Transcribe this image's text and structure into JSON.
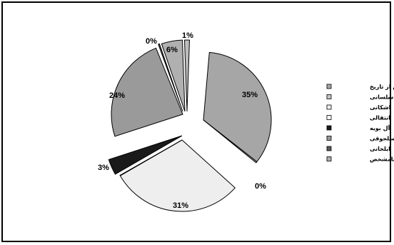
{
  "chart_data": {
    "type": "pie",
    "title": "",
    "legend_position": "right",
    "slices": [
      {
        "label": "پیش از تاریخ",
        "value": 35,
        "value_label": "35%",
        "color": "#a6a6a6"
      },
      {
        "label": "سلسانی",
        "value": 0,
        "value_label": "0%",
        "color": "#c4c4c4"
      },
      {
        "label": "اشکانی",
        "value": 31,
        "value_label": "31%",
        "color": "#eeeeee"
      },
      {
        "label": "انتقالی",
        "value": 0,
        "value_label": "",
        "color": "#ffffff"
      },
      {
        "label": "آل بویه",
        "value": 3,
        "value_label": "3%",
        "color": "#1a1a1a"
      },
      {
        "label": "سلجوقی",
        "value": 24,
        "value_label": "24%",
        "color": "#9a9a9a"
      },
      {
        "label": "ایلخانی",
        "value": 0,
        "value_label": "0%",
        "color": "#5a5a5a"
      },
      {
        "label": "نامشخص",
        "value": 6,
        "value_label": "6%",
        "color": "#b0b0b0"
      },
      {
        "label": "",
        "value": 1,
        "value_label": "1%",
        "color": "#bdbdbd"
      }
    ]
  }
}
